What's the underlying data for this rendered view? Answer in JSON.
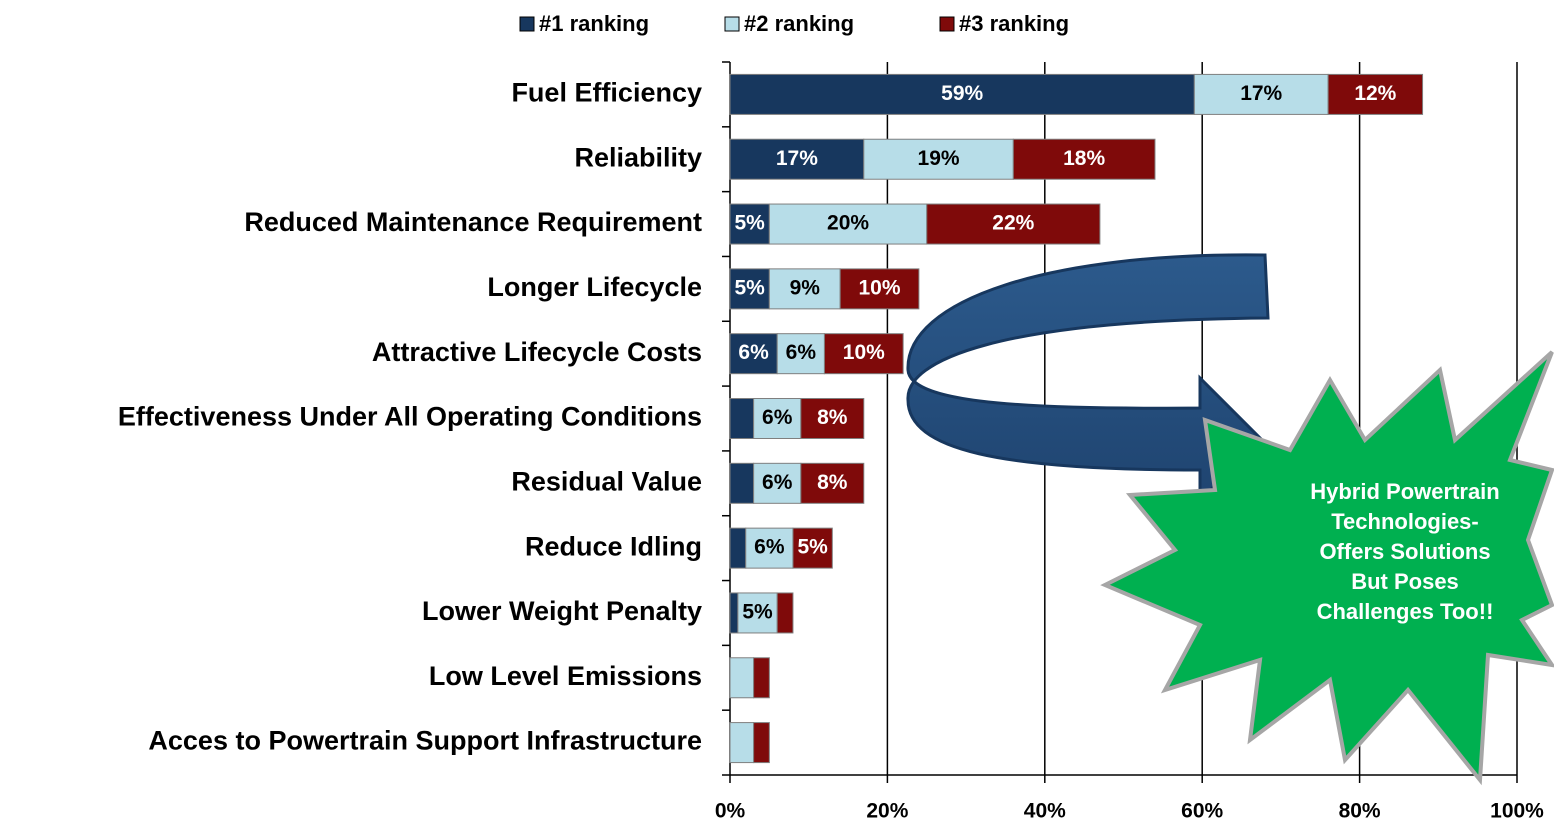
{
  "chart_data": {
    "type": "stacked-barh",
    "categories": [
      "Fuel Efficiency",
      "Reliability",
      "Reduced Maintenance Requirement",
      "Longer Lifecycle",
      "Attractive Lifecycle Costs",
      "Effectiveness Under All Operating Conditions",
      "Residual Value",
      "Reduce Idling",
      "Lower Weight Penalty",
      "Low Level Emissions",
      "Acces to Powertrain Support Infrastructure"
    ],
    "series": [
      {
        "name": "#1 ranking",
        "color": "#17375e",
        "label_color": "#ffffff",
        "values": [
          59,
          17,
          5,
          5,
          6,
          3,
          3,
          2,
          1,
          0,
          0
        ],
        "value_labels": [
          "59%",
          "17%",
          "5%",
          "5%",
          "6%",
          null,
          null,
          null,
          null,
          null,
          null
        ]
      },
      {
        "name": "#2 ranking",
        "color": "#b7dde8",
        "label_color": "#000000",
        "values": [
          17,
          19,
          20,
          9,
          6,
          6,
          6,
          6,
          5,
          3,
          3
        ],
        "value_labels": [
          "17%",
          "19%",
          "20%",
          "9%",
          "6%",
          "6%",
          "6%",
          "6%",
          "5%",
          null,
          null
        ]
      },
      {
        "name": "#3 ranking",
        "color": "#7f0a0a",
        "label_color": "#ffffff",
        "values": [
          12,
          18,
          22,
          10,
          10,
          8,
          8,
          5,
          2,
          2,
          2
        ],
        "value_labels": [
          "12%",
          "18%",
          "22%",
          "10%",
          "10%",
          "8%",
          "8%",
          "5%",
          null,
          null,
          null
        ]
      }
    ],
    "xlim": [
      0,
      100
    ],
    "xticks": [
      {
        "value": 0,
        "label": "0%"
      },
      {
        "value": 20,
        "label": "20%"
      },
      {
        "value": 40,
        "label": "40%"
      },
      {
        "value": 60,
        "label": "60%"
      },
      {
        "value": 80,
        "label": "80%"
      },
      {
        "value": 100,
        "label": "100%"
      }
    ],
    "grid": true,
    "legend": "top",
    "annotation": [
      "Hybrid Powertrain",
      "Technologies-",
      "Offers Solutions",
      "But  Poses",
      "Challenges Too!!"
    ]
  }
}
